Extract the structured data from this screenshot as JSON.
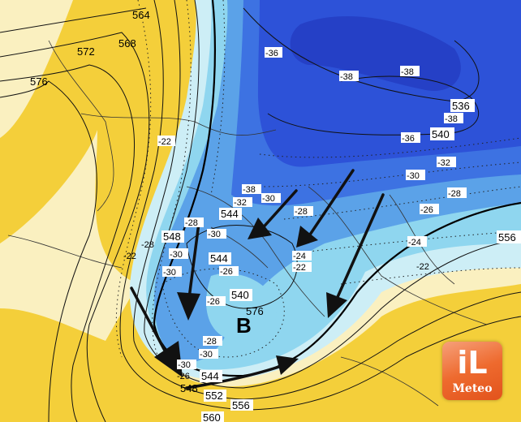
{
  "map": {
    "low_marker": "B",
    "colors": {
      "warm_yellow": "#f4cf3a",
      "pale_yellow": "#faf0c0",
      "light_cyan": "#cdeef6",
      "cyan": "#8fd6ef",
      "medium_blue": "#5ba2e8",
      "blue": "#3d72e2",
      "dark_blue": "#2d52d8",
      "darkest_blue": "#2540c6"
    },
    "geopotential_labels": [
      "564",
      "568",
      "572",
      "576",
      "536",
      "540",
      "556",
      "544",
      "548",
      "544",
      "540",
      "576",
      "544",
      "548",
      "552",
      "556",
      "560"
    ],
    "temperature_labels": [
      "-22",
      "-36",
      "-38",
      "-38",
      "-38",
      "-36",
      "-32",
      "-30",
      "-28",
      "-26",
      "-24",
      "-22",
      "-38",
      "-32",
      "-30",
      "-28",
      "-28",
      "-30",
      "-28",
      "-30",
      "-30",
      "-26",
      "-24",
      "-22",
      "-22",
      "-26",
      "-28",
      "-30",
      "-30",
      "-26"
    ],
    "arrows": [
      "cold-air-inflow-west",
      "cold-air-inflow-north",
      "cold-air-inflow-northeast",
      "cold-air-inflow-east",
      "cold-air-inflow-balkans",
      "return-flow-south"
    ]
  },
  "logo": {
    "text_top": "iL",
    "text_bottom": "Meteo"
  }
}
